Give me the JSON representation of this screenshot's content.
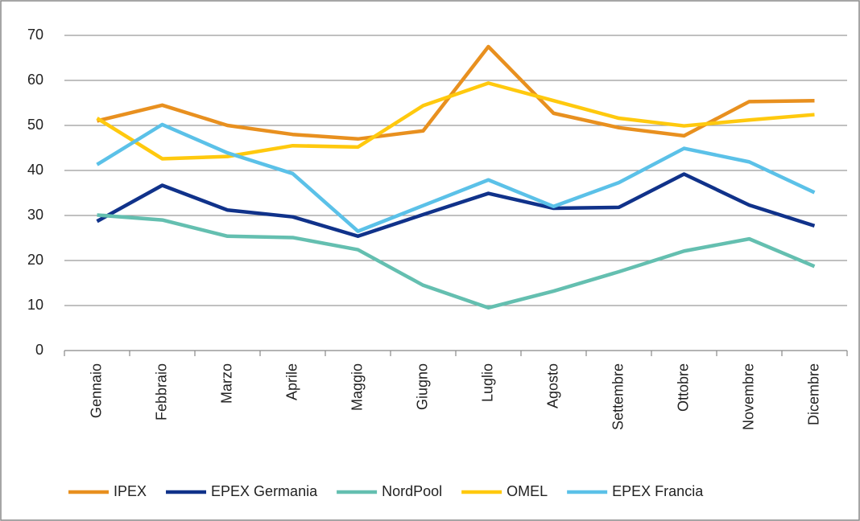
{
  "chart_data": {
    "type": "line",
    "categories": [
      "Gennaio",
      "Febbraio",
      "Marzo",
      "Aprile",
      "Maggio",
      "Giugno",
      "Luglio",
      "Agosto",
      "Settembre",
      "Ottobre",
      "Novembre",
      "Dicembre"
    ],
    "series": [
      {
        "name": "IPEX",
        "color": "#e8901f",
        "values": [
          51,
          54.5,
          50,
          48,
          47,
          48.8,
          67.5,
          52.7,
          49.5,
          47.7,
          55.3,
          55.5
        ]
      },
      {
        "name": "EPEX Germania",
        "color": "#10328a",
        "values": [
          28.7,
          36.7,
          31.2,
          29.7,
          25.4,
          30.2,
          34.9,
          31.6,
          31.8,
          39.2,
          32.3,
          27.7
        ]
      },
      {
        "name": "NordPool",
        "color": "#64bfb0",
        "values": [
          30.1,
          29,
          25.4,
          25.1,
          22.4,
          14.5,
          9.5,
          13.2,
          17.5,
          22.1,
          24.8,
          18.7
        ]
      },
      {
        "name": "OMEL",
        "color": "#ffc90e",
        "values": [
          51.6,
          42.6,
          43.1,
          45.5,
          45.2,
          54.4,
          59.4,
          55.5,
          51.6,
          49.9,
          51.2,
          52.4
        ]
      },
      {
        "name": "EPEX Francia",
        "color": "#5bc1e8",
        "values": [
          41.3,
          50.2,
          43.9,
          39.3,
          26.5,
          32.2,
          37.9,
          32.0,
          37.3,
          44.9,
          41.9,
          35.1
        ]
      }
    ],
    "ylim": [
      0,
      70
    ],
    "yticks": [
      0,
      10,
      20,
      30,
      40,
      50,
      60,
      70
    ],
    "grid": true,
    "legend": "bottom"
  }
}
